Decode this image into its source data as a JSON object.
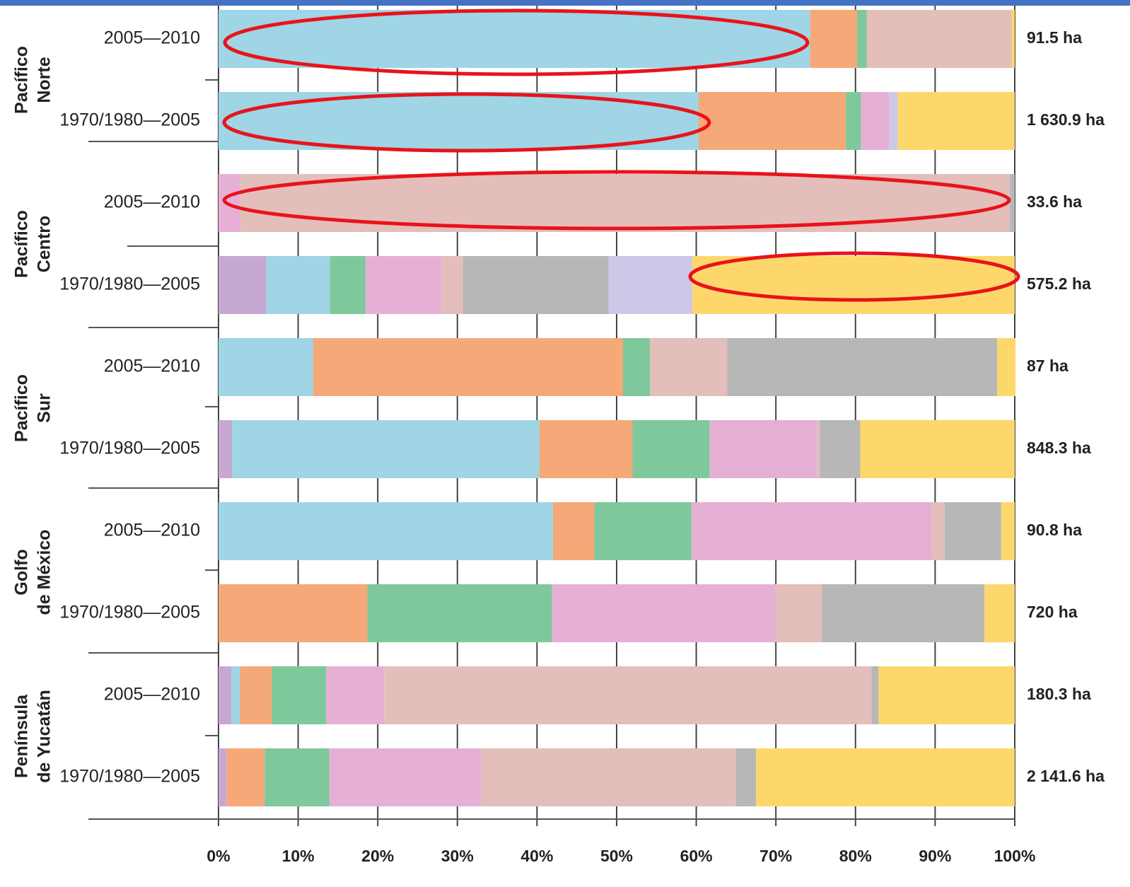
{
  "chart_data": {
    "type": "stacked-barh",
    "groups": [
      [
        "Pacífico",
        "Norte"
      ],
      [
        "Pacífico",
        "Centro"
      ],
      [
        "Pacífico",
        "Sur"
      ],
      [
        "Golfo",
        "de México"
      ],
      [
        "Península",
        "de Yucatán"
      ]
    ],
    "categories": [
      "2005—2010",
      "1970/1980—2005",
      "2005—2010",
      "1970/1980—2005",
      "2005—2010",
      "1970/1980—2005",
      "2005—2010",
      "1970/1980—2005",
      "2005—2010",
      "1970/1980—2005"
    ],
    "total_labels": [
      "91.5 ha",
      "1 630.9 ha",
      "33.6 ha",
      "575.2 ha",
      "87 ha",
      "848.3 ha",
      "90.8 ha",
      "720 ha",
      "180.3 ha",
      "2 141.6 ha"
    ],
    "series": [
      {
        "color": "#c7a8d2",
        "values": [
          0,
          0,
          0,
          6,
          0,
          1.7,
          0,
          0,
          1.6,
          1
        ]
      },
      {
        "color": "#9fd5e4",
        "values": [
          74.3,
          60.3,
          0,
          8,
          11.9,
          38.6,
          42,
          0,
          1.1,
          0
        ]
      },
      {
        "color": "#f5a878",
        "values": [
          5.9,
          18.5,
          0,
          0,
          38.9,
          11.7,
          5.2,
          18.7,
          4,
          4.8
        ]
      },
      {
        "color": "#7fc89b",
        "values": [
          1.2,
          1.9,
          0,
          4.5,
          3.4,
          9.7,
          12.2,
          23.2,
          6.8,
          8.1
        ]
      },
      {
        "color": "#e6b0d5",
        "values": [
          0,
          3.5,
          2.7,
          9.5,
          0,
          13.5,
          30.2,
          28,
          7.3,
          19.1
        ]
      },
      {
        "color": "#e3bebb",
        "values": [
          18.2,
          0,
          96.7,
          2.7,
          9.7,
          0.3,
          1.6,
          5.9,
          61.2,
          32
        ]
      },
      {
        "color": "#b7b7b8",
        "values": [
          0,
          0,
          0.6,
          18.3,
          33.9,
          5.1,
          7.1,
          20.4,
          0.9,
          2.5
        ]
      },
      {
        "color": "#cdc8e8",
        "values": [
          0,
          1.1,
          0,
          10.5,
          0,
          0,
          0,
          0,
          0,
          0
        ]
      },
      {
        "color": "#fdd76c",
        "values": [
          0.4,
          14.7,
          0,
          40.5,
          2.3,
          19.4,
          1.7,
          3.8,
          17.1,
          32.5
        ]
      }
    ],
    "xlim": [
      0,
      100
    ],
    "xticks": [
      {
        "value": 0,
        "label": "0%"
      },
      {
        "value": 10,
        "label": "10%"
      },
      {
        "value": 20,
        "label": "20%"
      },
      {
        "value": 30,
        "label": "30%"
      },
      {
        "value": 40,
        "label": "40%"
      },
      {
        "value": 50,
        "label": "50%"
      },
      {
        "value": 60,
        "label": "60%"
      },
      {
        "value": 70,
        "label": "70%"
      },
      {
        "value": 80,
        "label": "80%"
      },
      {
        "value": 90,
        "label": "90%"
      },
      {
        "value": 100,
        "label": "100%"
      }
    ]
  }
}
